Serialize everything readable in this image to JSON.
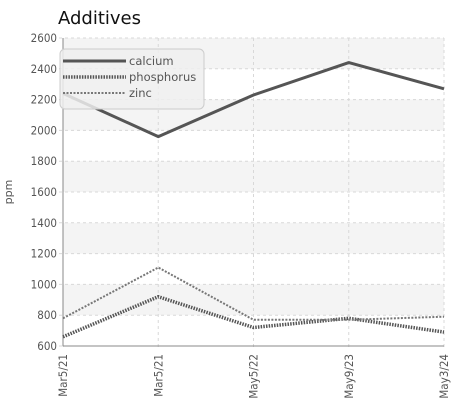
{
  "chart_data": {
    "type": "line",
    "title": "Additives",
    "xlabel": "",
    "ylabel": "ppm",
    "categories": [
      "Mar5/21",
      "Mar5/21",
      "May5/22",
      "May9/23",
      "May3/24"
    ],
    "ylim": [
      600,
      2600
    ],
    "yticks": [
      600,
      800,
      1000,
      1200,
      1400,
      1600,
      1800,
      2000,
      2200,
      2400,
      2600
    ],
    "grid": true,
    "legend_position": "top-left",
    "series": [
      {
        "name": "calcium",
        "values": [
          2240,
          1960,
          2230,
          2440,
          2270
        ],
        "color": "#555555",
        "style": "solid"
      },
      {
        "name": "phosphorus",
        "values": [
          660,
          920,
          720,
          780,
          690
        ],
        "color": "#555555",
        "style": "dotted"
      },
      {
        "name": "zinc",
        "values": [
          780,
          1110,
          770,
          770,
          790
        ],
        "color": "#777777",
        "style": "dashed"
      }
    ],
    "colors": {
      "grid": "#d8d8d8",
      "axis": "#888888",
      "band": "#f4f4f4",
      "legend_bg": "#eeeeee"
    }
  }
}
